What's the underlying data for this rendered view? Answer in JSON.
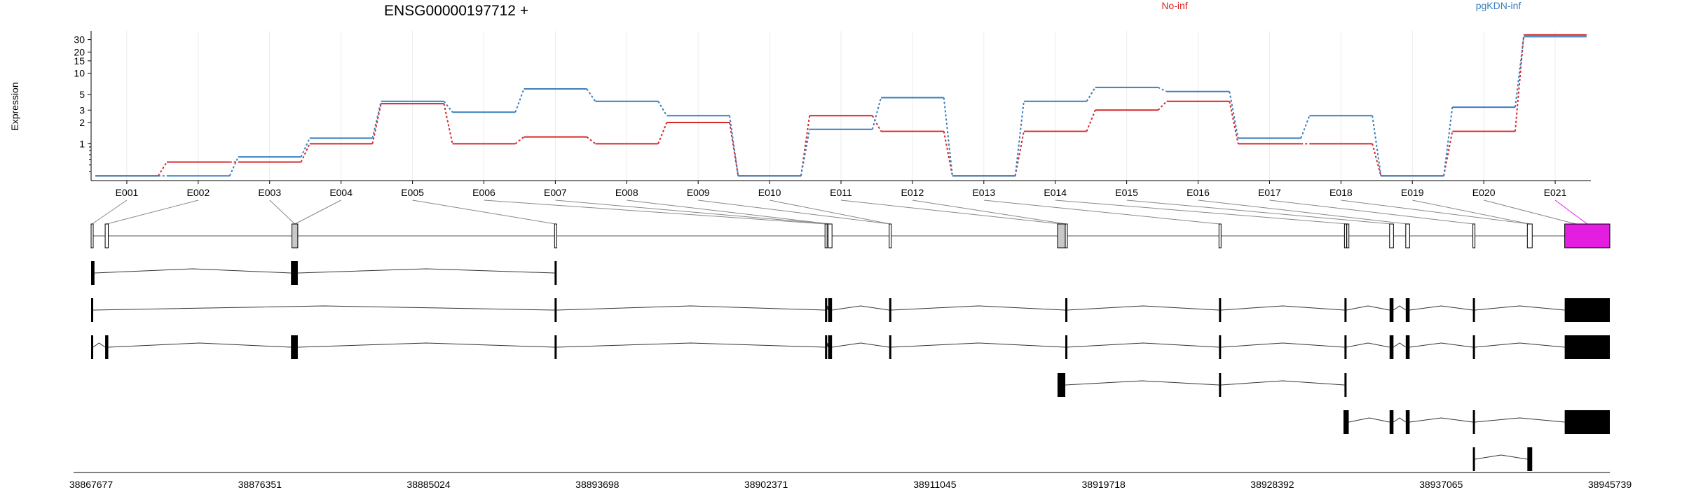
{
  "chart_data": {
    "type": "line",
    "title": "ENSG00000197712 +",
    "ylabel": "Expression",
    "y_scale": "log",
    "y_ticks": [
      1,
      2,
      3,
      5,
      10,
      15,
      20,
      30
    ],
    "ylim": [
      0.3,
      40
    ],
    "categories": [
      "E001",
      "E002",
      "E003",
      "E004",
      "E005",
      "E006",
      "E007",
      "E008",
      "E009",
      "E010",
      "E011",
      "E012",
      "E013",
      "E014",
      "E015",
      "E016",
      "E017",
      "E018",
      "E019",
      "E020",
      "E021"
    ],
    "series": [
      {
        "name": "No-inf",
        "color": "#d62728",
        "values": [
          0.35,
          0.55,
          0.55,
          1.0,
          3.7,
          1.0,
          1.25,
          1.0,
          2.0,
          0.35,
          2.5,
          1.5,
          0.35,
          1.5,
          3.0,
          4.0,
          1.0,
          1.0,
          0.35,
          1.5,
          35
        ]
      },
      {
        "name": "pgKDN-inf",
        "color": "#3a7ebf",
        "values": [
          0.35,
          0.35,
          0.65,
          1.2,
          4.0,
          2.8,
          6.0,
          4.0,
          2.5,
          0.35,
          1.6,
          4.5,
          0.35,
          4.0,
          6.3,
          5.5,
          1.2,
          2.5,
          0.35,
          3.3,
          33
        ]
      }
    ],
    "highlighted_exon": "E021",
    "genomic_ticks": [
      "38867677",
      "38876351",
      "38885024",
      "38893698",
      "38902371",
      "38911045",
      "38919718",
      "38928392",
      "38937065",
      "38945739"
    ],
    "genomic_range": [
      38867677,
      38945739
    ],
    "gene_exons": [
      [
        38867677,
        38867777
      ],
      [
        38868400,
        38868560
      ],
      [
        38878000,
        38878300
      ],
      [
        38891500,
        38891600
      ],
      [
        38905400,
        38905500
      ],
      [
        38905560,
        38905760
      ],
      [
        38908700,
        38908800
      ],
      [
        38917350,
        38917750
      ],
      [
        38917750,
        38917850
      ],
      [
        38925650,
        38925750
      ],
      [
        38932100,
        38932200
      ],
      [
        38932220,
        38932320
      ],
      [
        38934420,
        38934620
      ],
      [
        38935250,
        38935450
      ],
      [
        38938700,
        38938800
      ],
      [
        38941500,
        38941750
      ],
      [
        38943950,
        38944050
      ],
      [
        38943420,
        38945739
      ]
    ],
    "exon_links": [
      [
        1,
        1
      ],
      [
        2,
        2
      ],
      [
        3,
        3
      ],
      [
        4,
        3
      ],
      [
        5,
        4
      ],
      [
        6,
        5
      ],
      [
        7,
        6
      ],
      [
        8,
        6
      ],
      [
        9,
        7
      ],
      [
        10,
        7
      ],
      [
        11,
        8
      ],
      [
        12,
        9
      ],
      [
        13,
        10
      ],
      [
        14,
        12
      ],
      [
        15,
        13
      ],
      [
        16,
        14
      ],
      [
        17,
        15
      ],
      [
        18,
        16
      ],
      [
        19,
        16
      ],
      [
        20,
        17
      ],
      [
        21,
        18
      ]
    ],
    "transcripts": [
      [
        [
          38867677,
          38867850
        ],
        [
          38877950,
          38878300
        ],
        [
          38891500,
          38891600
        ]
      ],
      [
        [
          38867677,
          38867777
        ],
        [
          38891500,
          38891600
        ],
        [
          38905400,
          38905500
        ],
        [
          38905560,
          38905760
        ],
        [
          38908700,
          38908800
        ],
        [
          38917750,
          38917850
        ],
        [
          38925650,
          38925750
        ],
        [
          38932100,
          38932200
        ],
        [
          38934420,
          38934620
        ],
        [
          38935250,
          38935450
        ],
        [
          38938700,
          38938800
        ],
        [
          38943950,
          38944050
        ],
        [
          38943420,
          38945739
        ]
      ],
      [
        [
          38867677,
          38867777
        ],
        [
          38868400,
          38868560
        ],
        [
          38877950,
          38878300
        ],
        [
          38891500,
          38891600
        ],
        [
          38905400,
          38905500
        ],
        [
          38905560,
          38905760
        ],
        [
          38908700,
          38908800
        ],
        [
          38917750,
          38917850
        ],
        [
          38925650,
          38925750
        ],
        [
          38932100,
          38932200
        ],
        [
          38934420,
          38934620
        ],
        [
          38935250,
          38935450
        ],
        [
          38938700,
          38938800
        ],
        [
          38943950,
          38944050
        ],
        [
          38943420,
          38945739
        ]
      ],
      [
        [
          38917350,
          38917750
        ],
        [
          38925650,
          38925750
        ],
        [
          38932100,
          38932200
        ]
      ],
      [
        [
          38932050,
          38932320
        ],
        [
          38934420,
          38934620
        ],
        [
          38935250,
          38935450
        ],
        [
          38938700,
          38938800
        ],
        [
          38943950,
          38944050
        ],
        [
          38943420,
          38945739
        ]
      ],
      [
        [
          38938700,
          38938800
        ],
        [
          38941500,
          38941750
        ]
      ]
    ]
  },
  "colors": {
    "no_inf": "#d62728",
    "pgkdn_inf": "#3a7ebf",
    "highlight": "#e41ee0",
    "exon_fill": "#000000",
    "exon_grey": "#c8c8c8"
  }
}
